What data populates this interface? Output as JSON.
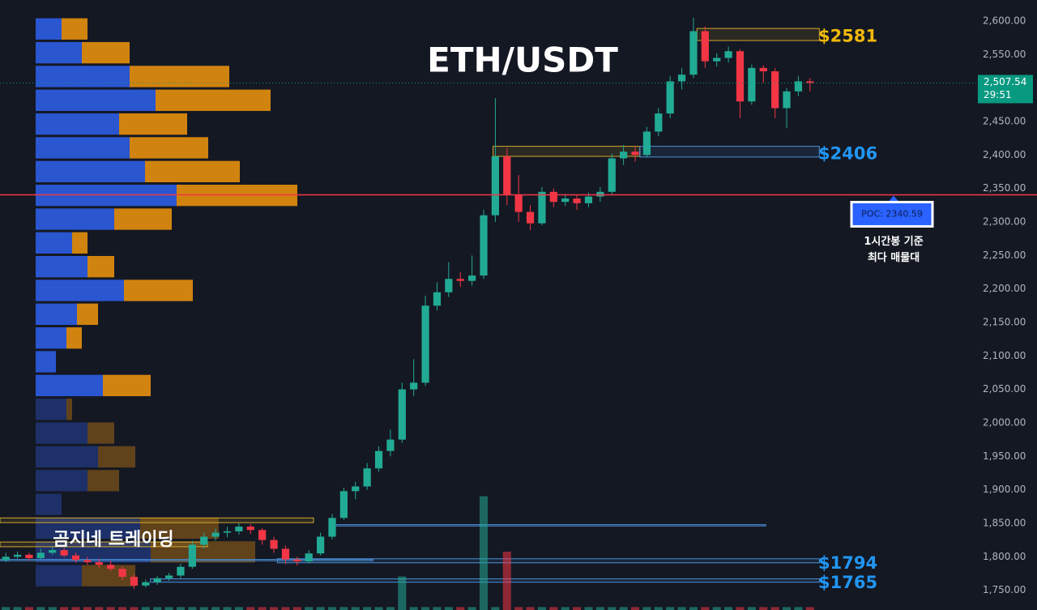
{
  "chart_data": {
    "type": "candlestick",
    "title": "ETH/USDT",
    "brand": "곰지네 트레이딩",
    "ylim": [
      1720.5,
      2631.5
    ],
    "yticks": [
      {
        "value": 2600,
        "label": "2,600.00"
      },
      {
        "value": 2550,
        "label": "2,550.00"
      },
      {
        "value": 2500,
        "label": "2,500.00"
      },
      {
        "value": 2450,
        "label": "2,450.00"
      },
      {
        "value": 2400,
        "label": "2,400.00"
      },
      {
        "value": 2350,
        "label": "2,350.00"
      },
      {
        "value": 2300,
        "label": "2,300.00"
      },
      {
        "value": 2250,
        "label": "2,250.00"
      },
      {
        "value": 2200,
        "label": "2,200.00"
      },
      {
        "value": 2150,
        "label": "2,150.00"
      },
      {
        "value": 2100,
        "label": "2,100.00"
      },
      {
        "value": 2050,
        "label": "2,050.00"
      },
      {
        "value": 2000,
        "label": "2,000.00"
      },
      {
        "value": 1950,
        "label": "1,950.00"
      },
      {
        "value": 1900,
        "label": "1,900.00"
      },
      {
        "value": 1850,
        "label": "1,850.00"
      },
      {
        "value": 1800,
        "label": "1,800.00"
      },
      {
        "value": 1750,
        "label": "1,750.00"
      }
    ],
    "grid": false,
    "up_color": "#22ab94",
    "down_color": "#f23645",
    "candles": [
      [
        1795,
        1806,
        1792,
        1800
      ],
      [
        1800,
        1808,
        1797,
        1803
      ],
      [
        1803,
        1806,
        1794,
        1798
      ],
      [
        1798,
        1812,
        1796,
        1806
      ],
      [
        1806,
        1815,
        1803,
        1810
      ],
      [
        1810,
        1813,
        1799,
        1802
      ],
      [
        1802,
        1806,
        1791,
        1795
      ],
      [
        1795,
        1800,
        1788,
        1792
      ],
      [
        1792,
        1797,
        1783,
        1788
      ],
      [
        1788,
        1794,
        1778,
        1782
      ],
      [
        1782,
        1786,
        1765,
        1770
      ],
      [
        1770,
        1774,
        1752,
        1757
      ],
      [
        1757,
        1766,
        1754,
        1762
      ],
      [
        1762,
        1771,
        1758,
        1768
      ],
      [
        1768,
        1776,
        1764,
        1772
      ],
      [
        1772,
        1790,
        1768,
        1785
      ],
      [
        1785,
        1824,
        1782,
        1818
      ],
      [
        1818,
        1836,
        1812,
        1830
      ],
      [
        1830,
        1842,
        1824,
        1836
      ],
      [
        1836,
        1845,
        1829,
        1838
      ],
      [
        1838,
        1850,
        1833,
        1845
      ],
      [
        1845,
        1849,
        1834,
        1840
      ],
      [
        1840,
        1843,
        1818,
        1825
      ],
      [
        1825,
        1830,
        1806,
        1812
      ],
      [
        1812,
        1817,
        1789,
        1796
      ],
      [
        1796,
        1800,
        1787,
        1793
      ],
      [
        1793,
        1810,
        1790,
        1805
      ],
      [
        1805,
        1836,
        1802,
        1830
      ],
      [
        1830,
        1864,
        1826,
        1858
      ],
      [
        1858,
        1903,
        1855,
        1898
      ],
      [
        1898,
        1912,
        1886,
        1905
      ],
      [
        1905,
        1940,
        1900,
        1932
      ],
      [
        1932,
        1965,
        1927,
        1958
      ],
      [
        1958,
        1990,
        1950,
        1975
      ],
      [
        1975,
        2060,
        1970,
        2050
      ],
      [
        2050,
        2095,
        2040,
        2060
      ],
      [
        2060,
        2190,
        2055,
        2175
      ],
      [
        2175,
        2210,
        2168,
        2195
      ],
      [
        2195,
        2240,
        2188,
        2215
      ],
      [
        2215,
        2225,
        2203,
        2212
      ],
      [
        2212,
        2250,
        2205,
        2220
      ],
      [
        2220,
        2318,
        2215,
        2310
      ],
      [
        2310,
        2485,
        2300,
        2398
      ],
      [
        2398,
        2410,
        2325,
        2340
      ],
      [
        2340,
        2370,
        2300,
        2315
      ],
      [
        2315,
        2325,
        2288,
        2298
      ],
      [
        2298,
        2352,
        2295,
        2345
      ],
      [
        2345,
        2350,
        2322,
        2330
      ],
      [
        2330,
        2342,
        2324,
        2335
      ],
      [
        2335,
        2340,
        2318,
        2328
      ],
      [
        2328,
        2344,
        2322,
        2338
      ],
      [
        2338,
        2352,
        2330,
        2345
      ],
      [
        2345,
        2402,
        2340,
        2395
      ],
      [
        2395,
        2415,
        2385,
        2405
      ],
      [
        2405,
        2412,
        2390,
        2400
      ],
      [
        2400,
        2442,
        2396,
        2435
      ],
      [
        2435,
        2470,
        2428,
        2462
      ],
      [
        2462,
        2518,
        2455,
        2510
      ],
      [
        2510,
        2530,
        2498,
        2520
      ],
      [
        2520,
        2605,
        2515,
        2585
      ],
      [
        2585,
        2592,
        2530,
        2540
      ],
      [
        2540,
        2552,
        2532,
        2545
      ],
      [
        2545,
        2562,
        2538,
        2555
      ],
      [
        2555,
        2558,
        2455,
        2480
      ],
      [
        2480,
        2535,
        2475,
        2530
      ],
      [
        2530,
        2534,
        2508,
        2525
      ],
      [
        2525,
        2530,
        2455,
        2470
      ],
      [
        2470,
        2500,
        2440,
        2495
      ],
      [
        2495,
        2518,
        2488,
        2510
      ],
      [
        2510,
        2515,
        2495,
        2507.54
      ]
    ],
    "volume": [
      2,
      2,
      2,
      2,
      2,
      2,
      2,
      2,
      2,
      2,
      2,
      2,
      2,
      2,
      2,
      2,
      2,
      2,
      2,
      2,
      2,
      2,
      2,
      2,
      2,
      2,
      2,
      2,
      2,
      2,
      2,
      2,
      2,
      2,
      23,
      2,
      2,
      2,
      2,
      2,
      2,
      78,
      2,
      40,
      2,
      2,
      2,
      2,
      2,
      2,
      2,
      2,
      2,
      2,
      2,
      2,
      2,
      2,
      2,
      2,
      2,
      2,
      2,
      2,
      2,
      2,
      2,
      2,
      2,
      2
    ],
    "vlim": [
      0,
      100
    ],
    "last": {
      "value": 2507.54,
      "label": "2,507.54",
      "countdown": "29:51",
      "color": "#089981"
    },
    "poc": {
      "value": 2340.59,
      "label": "POC: 2340.59",
      "color": "#f23645",
      "note": [
        "1시간봉 기준",
        "최다 매물대"
      ]
    },
    "levels": [
      {
        "value": 2581,
        "label": "$2581",
        "color": "#f0b90b"
      },
      {
        "value": 2406,
        "label": "$2406",
        "color": "#2196f3"
      },
      {
        "value": 1794,
        "label": "$1794",
        "color": "#2196f3"
      },
      {
        "value": 1765,
        "label": "$1765",
        "color": "#2196f3"
      }
    ],
    "zones": [
      {
        "from": 59.3,
        "to": 69.8,
        "top": 2589,
        "bottom": 2571,
        "color": "#d4a72c"
      },
      {
        "from": 41.8,
        "to": 54.4,
        "top": 2413,
        "bottom": 2398,
        "color": "#d4a72c"
      },
      {
        "from": 54.4,
        "to": 69.8,
        "top": 2413,
        "bottom": 2397,
        "color": "#4a8fd8"
      },
      {
        "from": 28.2,
        "to": 65.2,
        "top": 1848,
        "bottom": 1846,
        "color": "#4a8fd8"
      },
      {
        "from": -0.5,
        "to": 26.4,
        "top": 1858,
        "bottom": 1851,
        "color": "#d4a72c"
      },
      {
        "from": -0.5,
        "to": 17.3,
        "top": 1822,
        "bottom": 1815,
        "color": "#d4a72c"
      },
      {
        "from": -0.5,
        "to": 31.5,
        "top": 1796,
        "bottom": 1794,
        "color": "#4a8fd8"
      },
      {
        "from": 23.3,
        "to": 69.8,
        "top": 1797,
        "bottom": 1791,
        "color": "#4a8fd8"
      },
      {
        "from": 12.4,
        "to": 69.8,
        "top": 1767,
        "bottom": 1762,
        "color": "#4a8fd8"
      }
    ],
    "profile": {
      "bins": [
        2606,
        2570.5,
        2535,
        2499.5,
        2464,
        2428.5,
        2393,
        2357.5,
        2322,
        2286.5,
        2251,
        2215.5,
        2180,
        2144.5,
        2109,
        2073.5,
        2038,
        2002.5,
        1967,
        1931.5,
        1896,
        1860.5,
        1825,
        1789.5,
        1754
      ],
      "buy": [
        32,
        57,
        116,
        148,
        103,
        116,
        135,
        174,
        97,
        45,
        64,
        109,
        51,
        38,
        25,
        83,
        38,
        64,
        77,
        64,
        32,
        129,
        142,
        57
      ],
      "sell": [
        32,
        59,
        123,
        142,
        84,
        97,
        117,
        149,
        71,
        19,
        33,
        85,
        26,
        19,
        0,
        59,
        7,
        33,
        46,
        39,
        0,
        97,
        129,
        66
      ],
      "buy_color": "#2a56d0",
      "sell_color": "#d1830f",
      "value_area": [
        2038,
        2606
      ]
    }
  }
}
